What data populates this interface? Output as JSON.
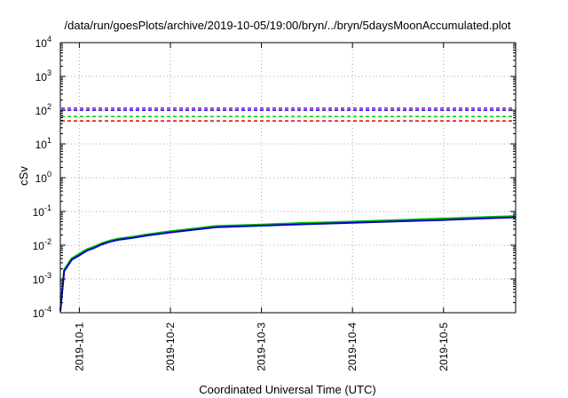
{
  "chart_data": {
    "type": "line",
    "title": "/data/run/goesPlots/archive/2019-10-05/19:00/bryn/../bryn/5daysMoonAccumulated.plot",
    "xlabel": "Coordinated Universal Time (UTC)",
    "ylabel": "cSv",
    "yscale": "log",
    "ylim": [
      0.0001,
      10000
    ],
    "xlim": [
      "2019-09-30T19:00",
      "2019-10-05T19:00"
    ],
    "grid": true,
    "y_ticks": [
      {
        "base": "10",
        "exp": "-4",
        "value": 0.0001
      },
      {
        "base": "10",
        "exp": "-3",
        "value": 0.001
      },
      {
        "base": "10",
        "exp": "-2",
        "value": 0.01
      },
      {
        "base": "10",
        "exp": "-1",
        "value": 0.1
      },
      {
        "base": "10",
        "exp": "0",
        "value": 1
      },
      {
        "base": "10",
        "exp": "1",
        "value": 10
      },
      {
        "base": "10",
        "exp": "2",
        "value": 100
      },
      {
        "base": "10",
        "exp": "3",
        "value": 1000
      },
      {
        "base": "10",
        "exp": "4",
        "value": 10000
      }
    ],
    "x_ticks": [
      {
        "label": "2019-10-1",
        "value": "2019-10-01T00:00"
      },
      {
        "label": "2019-10-2",
        "value": "2019-10-02T00:00"
      },
      {
        "label": "2019-10-3",
        "value": "2019-10-03T00:00"
      },
      {
        "label": "2019-10-4",
        "value": "2019-10-04T00:00"
      },
      {
        "label": "2019-10-5",
        "value": "2019-10-05T00:00"
      }
    ],
    "reference_lines": [
      {
        "y": 115,
        "color": "#9400d3",
        "style": "dashed"
      },
      {
        "y": 100,
        "color": "#0000cc",
        "style": "dashed"
      },
      {
        "y": 65,
        "color": "#00cc00",
        "style": "dashed"
      },
      {
        "y": 48,
        "color": "#e00000",
        "style": "dashed"
      }
    ],
    "series": [
      {
        "color": "#00c000",
        "width": 2,
        "x": [
          "2019-09-30T19:00",
          "2019-09-30T20:00",
          "2019-09-30T22:00",
          "2019-10-01T00:00",
          "2019-10-01T02:00",
          "2019-10-01T04:00",
          "2019-10-01T06:00",
          "2019-10-01T08:00",
          "2019-10-01T10:00",
          "2019-10-01T14:00",
          "2019-10-01T18:00",
          "2019-10-02T00:00",
          "2019-10-02T04:00",
          "2019-10-02T12:00",
          "2019-10-03T00:00",
          "2019-10-03T12:00",
          "2019-10-04T00:00",
          "2019-10-04T12:00",
          "2019-10-05T00:00",
          "2019-10-05T12:00",
          "2019-10-05T19:00"
        ],
        "values": [
          0.00012,
          0.0019,
          0.0041,
          0.0056,
          0.0076,
          0.0092,
          0.0116,
          0.0136,
          0.0155,
          0.0178,
          0.021,
          0.026,
          0.029,
          0.037,
          0.041,
          0.046,
          0.05,
          0.056,
          0.062,
          0.069,
          0.073
        ]
      },
      {
        "color": "#0000cc",
        "width": 2,
        "x": [
          "2019-09-30T19:00",
          "2019-09-30T20:00",
          "2019-09-30T22:00",
          "2019-10-01T00:00",
          "2019-10-01T02:00",
          "2019-10-01T04:00",
          "2019-10-01T06:00",
          "2019-10-01T08:00",
          "2019-10-01T10:00",
          "2019-10-01T14:00",
          "2019-10-01T18:00",
          "2019-10-02T00:00",
          "2019-10-02T04:00",
          "2019-10-02T12:00",
          "2019-10-03T00:00",
          "2019-10-03T12:00",
          "2019-10-04T00:00",
          "2019-10-04T12:00",
          "2019-10-05T00:00",
          "2019-10-05T12:00",
          "2019-10-05T19:00"
        ],
        "values": [
          0.00011,
          0.0017,
          0.0037,
          0.005,
          0.0069,
          0.0084,
          0.0106,
          0.0126,
          0.0143,
          0.0164,
          0.0195,
          0.024,
          0.027,
          0.034,
          0.038,
          0.042,
          0.046,
          0.051,
          0.056,
          0.063,
          0.067
        ]
      }
    ]
  }
}
